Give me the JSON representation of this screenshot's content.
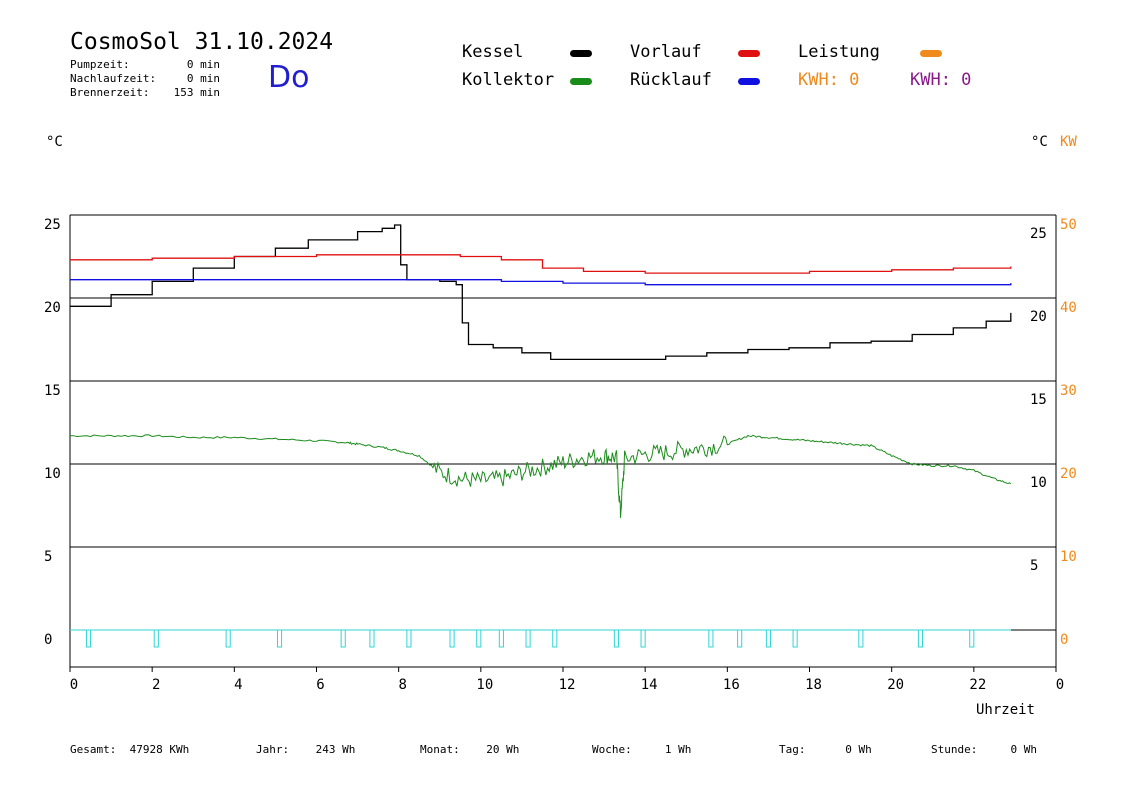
{
  "header": {
    "title": "CosmoSol 31.10.2024",
    "day": "Do",
    "stats": [
      {
        "label": "Pumpzeit:",
        "value": "0 min"
      },
      {
        "label": "Nachlaufzeit:",
        "value": "0 min"
      },
      {
        "label": "Brennerzeit:",
        "value": "153 min"
      }
    ]
  },
  "legend": {
    "kessel": {
      "label": "Kessel",
      "color": "#000000"
    },
    "kollektor": {
      "label": "Kollektor",
      "color": "#1a8c1a"
    },
    "vorlauf": {
      "label": "Vorlauf",
      "color": "#e01010"
    },
    "ruecklauf": {
      "label": "Rücklauf",
      "color": "#1010e0"
    },
    "leistung": {
      "label": "Leistung",
      "color": "#f08a1c"
    },
    "kwh1": {
      "label": "KWH: 0",
      "color": "#f08a1c"
    },
    "kwh2": {
      "label": "KWH: 0",
      "color": "#8a1a8a"
    }
  },
  "axes": {
    "left_unit": "°C",
    "right_unit_c": "°C",
    "right_unit_kw": "KW",
    "xlabel": "Uhrzeit"
  },
  "footer": [
    {
      "label": "Gesamt:",
      "value": "47928 KWh"
    },
    {
      "label": "Jahr:",
      "value": "243 Wh"
    },
    {
      "label": "Monat:",
      "value": "20 Wh"
    },
    {
      "label": "Woche:",
      "value": "1 Wh"
    },
    {
      "label": "Tag:",
      "value": "0 Wh"
    },
    {
      "label": "Stunde:",
      "value": "0 Wh"
    }
  ],
  "chart_data": {
    "type": "line",
    "xlim": [
      0,
      24
    ],
    "ylim": [
      -1,
      25
    ],
    "x_ticks": [
      "0",
      "2",
      "4",
      "6",
      "8",
      "10",
      "12",
      "14",
      "16",
      "18",
      "20",
      "22",
      "0"
    ],
    "y_ticks_left": [
      25,
      20,
      15,
      10,
      5,
      0
    ],
    "y_ticks_right_c": [
      25,
      20,
      15,
      10,
      5
    ],
    "y_ticks_right_kw": [
      50,
      40,
      30,
      20,
      10,
      0
    ],
    "grid": true,
    "series": [
      {
        "name": "Kessel",
        "color": "#000000",
        "points": [
          [
            0,
            19.5
          ],
          [
            1,
            20.2
          ],
          [
            2,
            21.0
          ],
          [
            3,
            21.8
          ],
          [
            4,
            22.5
          ],
          [
            5,
            23.0
          ],
          [
            5.8,
            23.5
          ],
          [
            6.2,
            23.5
          ],
          [
            7,
            24.0
          ],
          [
            7.6,
            24.2
          ],
          [
            7.9,
            24.4
          ],
          [
            8.05,
            22.0
          ],
          [
            8.2,
            21.1
          ],
          [
            9.0,
            21.0
          ],
          [
            9.4,
            20.8
          ],
          [
            9.55,
            18.5
          ],
          [
            9.7,
            17.2
          ],
          [
            10.3,
            17.0
          ],
          [
            11.0,
            16.7
          ],
          [
            11.7,
            16.3
          ],
          [
            12.5,
            16.3
          ],
          [
            13.5,
            16.3
          ],
          [
            14.5,
            16.5
          ],
          [
            15.5,
            16.7
          ],
          [
            16.5,
            16.9
          ],
          [
            17.5,
            17.0
          ],
          [
            18.5,
            17.3
          ],
          [
            19.5,
            17.4
          ],
          [
            20.5,
            17.8
          ],
          [
            21.5,
            18.2
          ],
          [
            22.3,
            18.6
          ],
          [
            22.9,
            19.1
          ]
        ]
      },
      {
        "name": "Vorlauf",
        "color": "#e01010",
        "points": [
          [
            0,
            22.3
          ],
          [
            2,
            22.4
          ],
          [
            4,
            22.5
          ],
          [
            6,
            22.6
          ],
          [
            8,
            22.6
          ],
          [
            9.5,
            22.5
          ],
          [
            10.5,
            22.3
          ],
          [
            11.5,
            21.8
          ],
          [
            12.5,
            21.6
          ],
          [
            14,
            21.5
          ],
          [
            16,
            21.5
          ],
          [
            18,
            21.6
          ],
          [
            20,
            21.7
          ],
          [
            21.5,
            21.8
          ],
          [
            22.9,
            21.9
          ]
        ]
      },
      {
        "name": "Rücklauf",
        "color": "#1010e0",
        "points": [
          [
            0,
            21.1
          ],
          [
            3,
            21.1
          ],
          [
            6,
            21.1
          ],
          [
            8,
            21.1
          ],
          [
            9,
            21.1
          ],
          [
            10.5,
            21.0
          ],
          [
            12,
            20.9
          ],
          [
            14,
            20.8
          ],
          [
            16,
            20.8
          ],
          [
            18,
            20.8
          ],
          [
            20,
            20.8
          ],
          [
            22.9,
            20.9
          ]
        ]
      },
      {
        "name": "Kollektor",
        "color": "#1a8c1a",
        "noisy_range": [
          8.8,
          16.0
        ],
        "points": [
          [
            0,
            11.7
          ],
          [
            1,
            11.7
          ],
          [
            2,
            11.7
          ],
          [
            3,
            11.6
          ],
          [
            4,
            11.6
          ],
          [
            5,
            11.5
          ],
          [
            6,
            11.4
          ],
          [
            6.7,
            11.3
          ],
          [
            7,
            11.2
          ],
          [
            7.6,
            11.0
          ],
          [
            8,
            10.8
          ],
          [
            8.5,
            10.5
          ],
          [
            9,
            9.5
          ],
          [
            9.5,
            9.1
          ],
          [
            10,
            9.0
          ],
          [
            10.5,
            9.1
          ],
          [
            11,
            9.5
          ],
          [
            11.5,
            9.8
          ],
          [
            12,
            10.1
          ],
          [
            12.5,
            10.4
          ],
          [
            13,
            10.5
          ],
          [
            13.3,
            10.4
          ],
          [
            13.4,
            7.0
          ],
          [
            13.5,
            10.3
          ],
          [
            14,
            10.6
          ],
          [
            14.5,
            10.7
          ],
          [
            15,
            10.9
          ],
          [
            15.5,
            11.0
          ],
          [
            16,
            11.2
          ],
          [
            16.5,
            11.7
          ],
          [
            17,
            11.6
          ],
          [
            17.5,
            11.5
          ],
          [
            18,
            11.4
          ],
          [
            18.5,
            11.3
          ],
          [
            19,
            11.2
          ],
          [
            19.5,
            11.1
          ],
          [
            20,
            10.5
          ],
          [
            20.5,
            10.0
          ],
          [
            21,
            9.9
          ],
          [
            21.5,
            9.9
          ],
          [
            22,
            9.6
          ],
          [
            22.5,
            9.1
          ],
          [
            22.9,
            8.8
          ]
        ]
      }
    ],
    "pump_on_intervals": [
      [
        0.4,
        0.5
      ],
      [
        2.05,
        2.15
      ],
      [
        3.8,
        3.9
      ],
      [
        5.05,
        5.15
      ],
      [
        6.6,
        6.7
      ],
      [
        7.3,
        7.4
      ],
      [
        8.2,
        8.3
      ],
      [
        9.25,
        9.35
      ],
      [
        9.9,
        10.0
      ],
      [
        10.45,
        10.55
      ],
      [
        11.1,
        11.2
      ],
      [
        11.75,
        11.85
      ],
      [
        13.25,
        13.35
      ],
      [
        13.9,
        14.0
      ],
      [
        15.55,
        15.65
      ],
      [
        16.25,
        16.35
      ],
      [
        16.95,
        17.05
      ],
      [
        17.6,
        17.7
      ],
      [
        19.2,
        19.3
      ],
      [
        20.65,
        20.75
      ],
      [
        21.9,
        22.0
      ]
    ],
    "pump_color": "#2ed6d6"
  }
}
